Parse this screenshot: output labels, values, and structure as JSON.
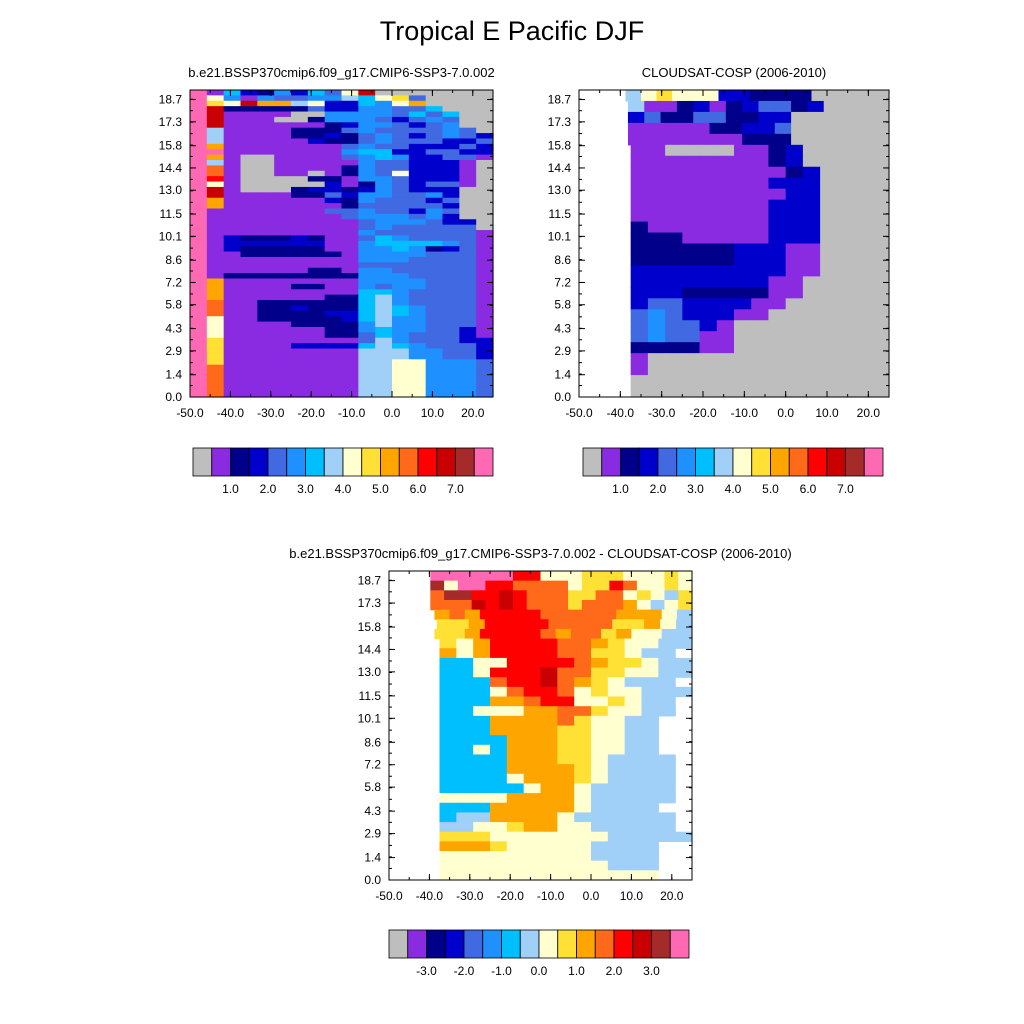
{
  "title": "Tropical E Pacific DJF",
  "chart_data": [
    {
      "type": "heatmap",
      "title": "b.e21.BSSP370cmip6.f09_g17.CMIP6-SSP3-7.0.002",
      "xlim": [
        -50,
        25
      ],
      "ylim": [
        0,
        19.3
      ],
      "x_ticks": [
        "-50.0",
        "-40.0",
        "-30.0",
        "-20.0",
        "-10.0",
        "0.0",
        "10.0",
        "20.0"
      ],
      "y_ticks": [
        "0.0",
        "1.4",
        "2.9",
        "4.3",
        "5.8",
        "7.2",
        "8.6",
        "10.1",
        "11.5",
        "13.0",
        "14.4",
        "15.8",
        "17.3",
        "18.7"
      ],
      "colorbar": {
        "labels": [
          "1.0",
          "2.0",
          "3.0",
          "4.0",
          "5.0",
          "6.0",
          "7.0"
        ],
        "colors": [
          "#BEBEBE",
          "#8A2BE2",
          "#00008B",
          "#0000CD",
          "#4169E1",
          "#1E90FF",
          "#00BFFF",
          "#A0CFF8",
          "#FFFFD0",
          "#FFE135",
          "#FFA500",
          "#FF6A1A",
          "#FF0000",
          "#C80000",
          "#A52A2A",
          "#FF69B4"
        ]
      },
      "rows": [
        "SAF3BEC6DHM2222222",
        "SHEAE44EEGFHI42222",
        "SIHMJJGHCCFEHJ2222",
        "SMBBBBBDCCEEDDF222",
        "SMAAAA22EEEEDFDF22",
        "SMAAA22BEEEDCDED22",
        "SMAAAAAABCEEDCDE22",
        "S7AAAABBBDEDDDDED2",
        "S7AAAABBCBDEDCDEDC",
        "S7AAAAACBBDEDDDCCD",
        "SJAAAAAAADEDDCCCDC",
        "SOAAAAAAAEFFCCDDCC",
        "SJA22AAAADEFECCDDA",
        "S7A22AAAAAEDDCCCA2",
        "SKA22AAAABEDDCCCA2",
        "SKA22AA2ABEDHCCCA2",
        "SLA2222BBAEEDCCCA2",
        "S8A22222CABEDCDDA2",
        "SMA222BCCBCEDCCC22",
        "SMAAAABBDCEEDDEC22",
        "SJAAAAAACBEDDDCD22",
        "SJAAAAAAABDDDDDC22",
        "SAAAAAAADDEDDCED22",
        "SAAAAAAAADEEEDEC22",
        "SAAAAAAAAADEEEDCC2",
        "SAAAAAAAAADEDDDDD2",
        "SAAAAAAAAAEDDDDDDA",
        "SACBBBCBAADFEDDDDA",
        "SACCCCCCAAEFFFFEDA",
        "SACBBBBBAAEEFEBCDA",
        "SAABBBBBBAEEEEDDDA",
        "SAAAAAAAAAEEEDDDDA",
        "SAAAAAAAAADDDDDDDA",
        "SAAAAAABBAEEDDDDDA",
        "SABBBBBBBBEEEDDDDA",
        "SJAAAAAAAAEEEEDDDA",
        "SJAAAABBAAEDEEDDDA",
        "SJAAAAAAAAFFEDDDDA",
        "SJAAAAAABBFGEDDDDA",
        "SKAABBBBBBFGEDDDDA",
        "SKAABBCBBBFGFEDDDA",
        "SKAABBBBCCFGFEDDDA",
        "SHAABBBBBCFGEEDDDA",
        "SHAAAABBBBEGEEDDDA",
        "SHAAAAAABBEFEEDDCA",
        "SHAAAAAABBDFEDDDCA",
        "SIAAAAAAAADGEDDDCC",
        "SIAAAACCCCFGFEDDDC",
        "SIAAAAAAAAGGGEEDDC",
        "SIAAAAAAAAGGGEEDDC",
        "SIAAAAAAAAGGHHEEED",
        "SKAAAAAAAAGGHHEEED",
        "SKAAAAAAAAGGHHEEED",
        "SKAAAAAAAAGGHHEEED",
        "SKAAAAAAAAGGHHEEED",
        "SKAAAAAAAAGGHHEEED",
        "SKAAAAAAAAGGHHEEED"
      ]
    },
    {
      "type": "heatmap",
      "title": "CLOUDSAT-COSP (2006-2010)",
      "xlim": [
        -50,
        25
      ],
      "ylim": [
        0,
        19.3
      ],
      "x_ticks": [
        "-50.0",
        "-40.0",
        "-30.0",
        "-20.0",
        "-10.0",
        "0.0",
        "10.0",
        "20.0"
      ],
      "y_ticks": [
        "0.0",
        "1.4",
        "2.9",
        "4.3",
        "5.8",
        "7.2",
        "8.6",
        "10.1",
        "11.5",
        "13.0",
        "14.4",
        "15.8",
        "17.3",
        "18.7"
      ],
      "colorbar": {
        "labels": [
          "1.0",
          "2.0",
          "3.0",
          "4.0",
          "5.0",
          "6.0",
          "7.0"
        ],
        "colors": [
          "#BEBEBE",
          "#8A2BE2",
          "#00008B",
          "#0000CD",
          "#4169E1",
          "#1E90FF",
          "#00BFFF",
          "#A0CFF8",
          "#FFFFD0",
          "#FFE135",
          "#FFA500",
          "#FF6A1A",
          "#FF0000",
          "#C80000",
          "#A52A2A",
          "#FF69B4"
        ]
      },
      "rows": [
        "WWW789888CCBBBB22222",
        "WWW7AABCABCDDBC2222",
        "WWWCDBBDDBBCC222222",
        "WWWAAAAABBCCD222222",
        "WWWAAAAAAABBB222222",
        "WWWAA2222AABC22222",
        "WWWAAAAAAAABC22222",
        "WWWAAAAAAAAABC2222",
        "WWWAAAAAAAACCC2222",
        "WWWAAAAAAAAACC2222",
        "WWWAAAAAAAACCC2222",
        "WWWAAAAAAAACCC2222",
        "WWWBAAAAAAACCC2222",
        "WWWBBBAAAAACCC2222",
        "WWWBBBBBBCCCAA2222",
        "WWWBBBBBBCCCAA2222",
        "WWWCCCCCCCCCAA2222",
        "WWWCCCCCCCCAA22222",
        "WWWCCCBBBBBAA22222",
        "WWWCDDCCCCAA222222",
        "WWWDEDCCCAA2222222",
        "WWWDEDDCA222222222",
        "WWWDEDDAA222222222",
        "WWWBBBBAA222222222",
        "WWWA22222222222222",
        "WWWA22222222222222",
        "WWW222222222222222",
        "WWW222222222222222"
      ]
    },
    {
      "type": "heatmap",
      "title": "b.e21.BSSP370cmip6.f09_g17.CMIP6-SSP3-7.0.002 - CLOUDSAT-COSP (2006-2010)",
      "xlim": [
        -50,
        25
      ],
      "ylim": [
        0,
        19.3
      ],
      "x_ticks": [
        "-50.0",
        "-40.0",
        "-30.0",
        "-20.0",
        "-10.0",
        "0.0",
        "10.0",
        "20.0"
      ],
      "y_ticks": [
        "0.0",
        "1.4",
        "2.9",
        "4.3",
        "5.8",
        "7.2",
        "8.6",
        "10.1",
        "11.5",
        "13.0",
        "14.4",
        "15.8",
        "17.3",
        "18.7"
      ],
      "colorbar": {
        "labels": [
          "-3.0",
          "-2.0",
          "-1.0",
          "0.0",
          "1.0",
          "2.0",
          "3.0"
        ],
        "colors": [
          "#BEBEBE",
          "#8A2BE2",
          "#00008B",
          "#0000CD",
          "#4169E1",
          "#1E90FF",
          "#00BFFF",
          "#A0CFF8",
          "#FFFFD0",
          "#FFE135",
          "#FFA500",
          "#FF6A1A",
          "#FF0000",
          "#C80000",
          "#A52A2A",
          "#FF69B4"
        ]
      },
      "rows": [
        "WWWPPPPPPMM88899988898",
        "WWWO8PPMMLLLL899ML8898",
        "WWWLOOMMNMLLL99LL89879",
        "WWWLLLNMNMLLL9LLLK8789",
        "WWWKLKMMMMLLLLLKKK87",
        "WWWJJKMMMMLLLLJJK87",
        "WWWJJKMMMMLKLLJK8877",
        "WWW98KMMMMLLKJ8877",
        "WWWK8KMMMMLL99877",
        "WWW6688MMMMLK99877",
        "WWW668MMMNLL998877",
        "WWW666LMMNLK98777",
        "WWW6668LMML8988777",
        "WWW666KKLMM889877",
        "WWW66888KKLL98877",
        "WWW666KKKKL98877",
        "WWW666KKKK998877",
        "WWW6666KKK998877",
        "WWW6686KKK998877",
        "WWW6666KKK9987777",
        "WWW6666KKKK987777",
        "WWW66668KKK987777",
        "WWW666668KK877777",
        "WWW8888KKKK877777",
        "WWW666KKKKK87777",
        "WWW677KKKK8777777",
        "WWW77889KK8877777",
        "WWWJJJ888888877777",
        "WWWKKKJ888887777",
        "WWW8888888887777",
        "WWW8888888888777",
        "WWW8888888888888"
      ]
    }
  ]
}
